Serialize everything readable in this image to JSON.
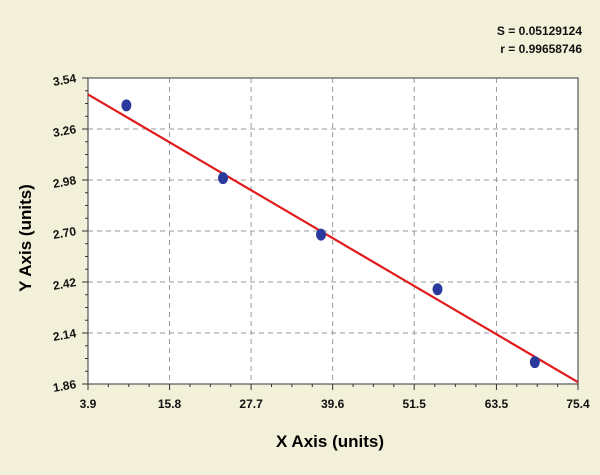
{
  "stats": {
    "s_label": "S = 0.05129124",
    "r_label": "r = 0.99658746"
  },
  "chart_data": {
    "type": "scatter",
    "title": "",
    "xlabel": "X Axis (units)",
    "ylabel": "Y Axis (units)",
    "xlim": [
      3.9,
      75.4
    ],
    "ylim": [
      1.86,
      3.54
    ],
    "x_ticks": [
      "3.9",
      "15.8",
      "27.7",
      "39.6",
      "51.5",
      "63.5",
      "75.4"
    ],
    "x_tick_values": [
      3.9,
      15.8,
      27.7,
      39.6,
      51.5,
      63.5,
      75.4
    ],
    "y_ticks": [
      "1.86",
      "2.14",
      "2.42",
      "2.70",
      "2.98",
      "3.26",
      "3.54"
    ],
    "y_tick_values": [
      1.86,
      2.14,
      2.42,
      2.7,
      2.98,
      3.26,
      3.54
    ],
    "grid": true,
    "point_color": "#2a3a9c",
    "line_color": "#e01a1a",
    "points": [
      {
        "x": 9.5,
        "y": 3.39
      },
      {
        "x": 23.6,
        "y": 2.99
      },
      {
        "x": 37.9,
        "y": 2.68
      },
      {
        "x": 54.9,
        "y": 2.38
      },
      {
        "x": 69.1,
        "y": 1.98
      }
    ],
    "fit_line": {
      "x0": 3.9,
      "y0": 3.45,
      "x1": 75.4,
      "y1": 1.87
    }
  }
}
